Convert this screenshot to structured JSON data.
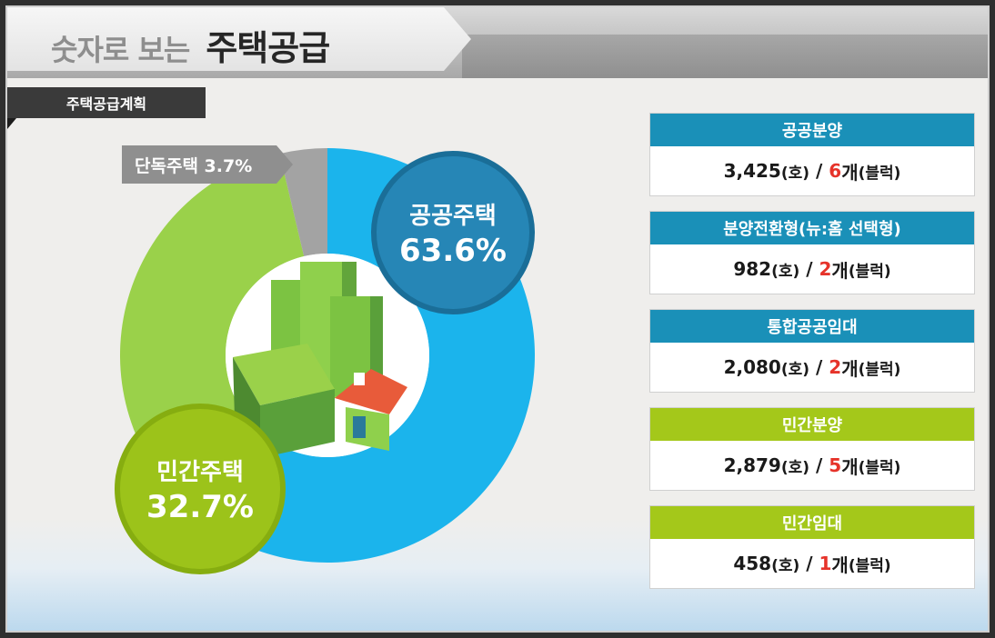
{
  "header": {
    "title_prefix": "숫자로 보는",
    "title_main": "주택공급"
  },
  "subtitle": "주택공급계획",
  "chart_data": {
    "type": "pie",
    "categories": [
      "공공주택",
      "민간주택",
      "단독주택"
    ],
    "values": [
      63.6,
      32.7,
      3.7
    ],
    "colors": [
      "#1bb4ec",
      "#9ad14a",
      "#a3a3a3"
    ],
    "labels": {
      "public": {
        "name": "공공주택",
        "pct": "63.6%"
      },
      "private": {
        "name": "민간주택",
        "pct": "32.7%"
      },
      "detached": {
        "text": "단독주택 3.7%"
      }
    }
  },
  "cards": [
    {
      "title": "공공분양",
      "units": "3,425",
      "units_unit": "(호)",
      "sep": " / ",
      "blocks": "6",
      "blocks_unit": "개",
      "blocks_note": "(블럭)",
      "color": "blue"
    },
    {
      "title": "분양전환형(뉴:홈 선택형)",
      "units": "982",
      "units_unit": "(호)",
      "sep": " / ",
      "blocks": "2",
      "blocks_unit": "개",
      "blocks_note": "(블럭)",
      "color": "blue"
    },
    {
      "title": "통합공공임대",
      "units": "2,080",
      "units_unit": "(호)",
      "sep": " / ",
      "blocks": "2",
      "blocks_unit": "개",
      "blocks_note": "(블럭)",
      "color": "blue"
    },
    {
      "title": "민간분양",
      "units": "2,879",
      "units_unit": "(호)",
      "sep": " / ",
      "blocks": "5",
      "blocks_unit": "개",
      "blocks_note": "(블럭)",
      "color": "green"
    },
    {
      "title": "민간임대",
      "units": "458",
      "units_unit": "(호)",
      "sep": " / ",
      "blocks": "1",
      "blocks_unit": "개",
      "blocks_note": "(블럭)",
      "color": "green"
    }
  ]
}
